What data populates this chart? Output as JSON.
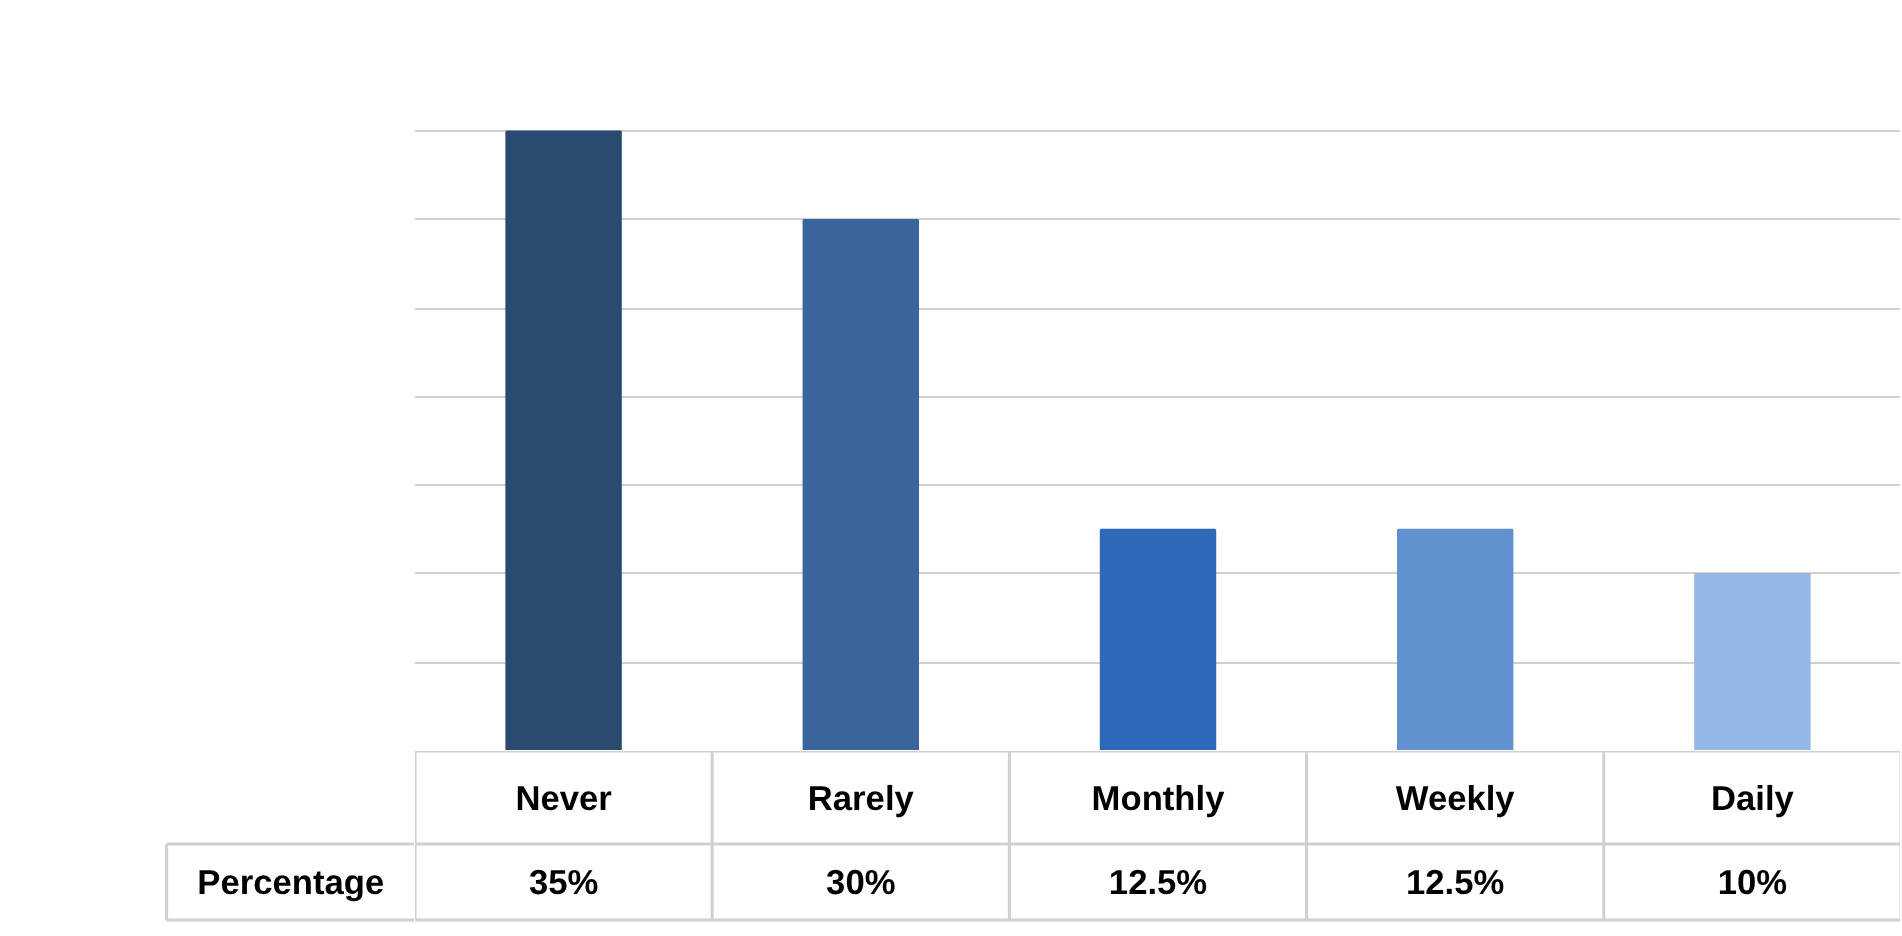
{
  "chart_data": {
    "type": "bar",
    "categories": [
      "Never",
      "Rarely",
      "Monthly",
      "Weekly",
      "Daily"
    ],
    "series": [
      {
        "name": "Percentage",
        "values": [
          35,
          30,
          12.5,
          12.5,
          10
        ],
        "value_labels": [
          "35%",
          "30%",
          "12.5%",
          "12.5%",
          "10%"
        ]
      }
    ],
    "colors": [
      "#2b4a70",
      "#3a659c",
      "#2e6ab8",
      "#6191cf",
      "#93b8e6"
    ],
    "grid": "y",
    "tick_labels": "x"
  }
}
